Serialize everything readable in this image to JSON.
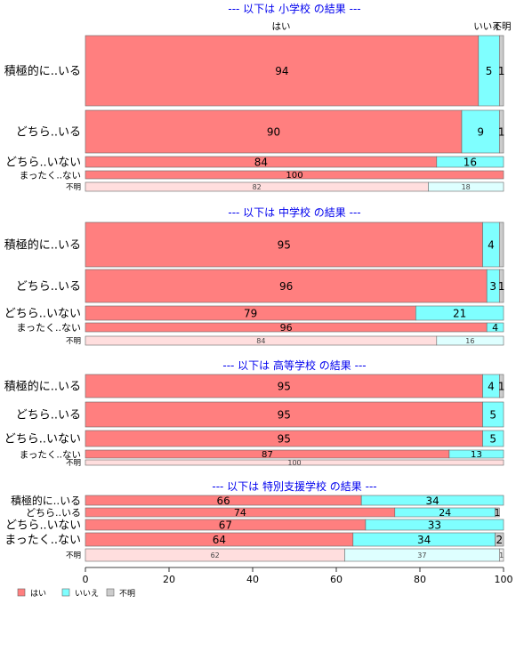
{
  "chart_data": {
    "type": "bar",
    "stacked": true,
    "orientation": "horizontal",
    "column_headers": [
      "はい",
      "いいえ",
      "不明"
    ],
    "series": [
      {
        "name": "はい",
        "color": "#ff7f7f",
        "faded_color": "#ffdede"
      },
      {
        "name": "いいえ",
        "color": "#7fffff",
        "faded_color": "#deffff"
      },
      {
        "name": "不明",
        "color": "#cccccc",
        "faded_color": "#eeeeee"
      }
    ],
    "xlim": [
      0,
      100
    ],
    "x_ticks": [
      "0",
      "20",
      "40",
      "60",
      "80",
      "100"
    ],
    "panels": [
      {
        "title": "--- 以下は 小学校 の結果 ---",
        "rows": [
          {
            "label": "積極的に..いる",
            "values": [
              94,
              5,
              1
            ],
            "labels": [
              "94",
              "5",
              "1"
            ],
            "faded": false
          },
          {
            "label": "どちら..いる",
            "values": [
              90,
              9,
              1
            ],
            "labels": [
              "90",
              "9",
              "1"
            ],
            "faded": false
          },
          {
            "label": "どちら..いない",
            "values": [
              84,
              16,
              0
            ],
            "labels": [
              "84",
              "16",
              ""
            ],
            "faded": false
          },
          {
            "label": "まったく..ない",
            "values": [
              100,
              0,
              0
            ],
            "labels": [
              "100",
              "",
              ""
            ],
            "faded": false
          },
          {
            "label": "不明",
            "values": [
              82,
              18,
              0
            ],
            "labels": [
              "82",
              "18",
              ""
            ],
            "faded": true
          }
        ]
      },
      {
        "title": "--- 以下は 中学校 の結果 ---",
        "rows": [
          {
            "label": "積極的に..いる",
            "values": [
              95,
              4,
              1
            ],
            "labels": [
              "95",
              "4",
              ""
            ],
            "faded": false
          },
          {
            "label": "どちら..いる",
            "values": [
              96,
              3,
              1
            ],
            "labels": [
              "96",
              "3",
              "1"
            ],
            "faded": false
          },
          {
            "label": "どちら..いない",
            "values": [
              79,
              21,
              0
            ],
            "labels": [
              "79",
              "21",
              ""
            ],
            "faded": false
          },
          {
            "label": "まったく..ない",
            "values": [
              96,
              4,
              0
            ],
            "labels": [
              "96",
              "4",
              ""
            ],
            "faded": false
          },
          {
            "label": "不明",
            "values": [
              84,
              16,
              0
            ],
            "labels": [
              "84",
              "16",
              ""
            ],
            "faded": true
          }
        ]
      },
      {
        "title": "--- 以下は 高等学校 の結果 ---",
        "rows": [
          {
            "label": "積極的に..いる",
            "values": [
              95,
              4,
              1
            ],
            "labels": [
              "95",
              "4",
              "1"
            ],
            "faded": false
          },
          {
            "label": "どちら..いる",
            "values": [
              95,
              5,
              0
            ],
            "labels": [
              "95",
              "5",
              ""
            ],
            "faded": false
          },
          {
            "label": "どちら..いない",
            "values": [
              95,
              5,
              0
            ],
            "labels": [
              "95",
              "5",
              ""
            ],
            "faded": false
          },
          {
            "label": "まったく..ない",
            "values": [
              87,
              13,
              0
            ],
            "labels": [
              "87",
              "13",
              ""
            ],
            "faded": false
          },
          {
            "label": "不明",
            "values": [
              100,
              0,
              0
            ],
            "labels": [
              "100",
              "",
              ""
            ],
            "faded": true
          }
        ]
      },
      {
        "title": "--- 以下は 特別支援学校 の結果 ---",
        "rows": [
          {
            "label": "積極的に..いる",
            "values": [
              66,
              34,
              0
            ],
            "labels": [
              "66",
              "34",
              ""
            ],
            "faded": false
          },
          {
            "label": "どちら..いる",
            "values": [
              74,
              24,
              1
            ],
            "labels": [
              "74",
              "24",
              "1"
            ],
            "faded": false
          },
          {
            "label": "どちら..いない",
            "values": [
              67,
              33,
              0
            ],
            "labels": [
              "67",
              "33",
              ""
            ],
            "faded": false
          },
          {
            "label": "まったく..ない",
            "values": [
              64,
              34,
              2
            ],
            "labels": [
              "64",
              "34",
              "2"
            ],
            "faded": false
          },
          {
            "label": "不明",
            "values": [
              62,
              37,
              1
            ],
            "labels": [
              "62",
              "37",
              "1"
            ],
            "faded": true
          }
        ]
      }
    ],
    "legend": [
      "はい",
      "いいえ",
      "不明"
    ],
    "legend_position": "bottom-left"
  }
}
